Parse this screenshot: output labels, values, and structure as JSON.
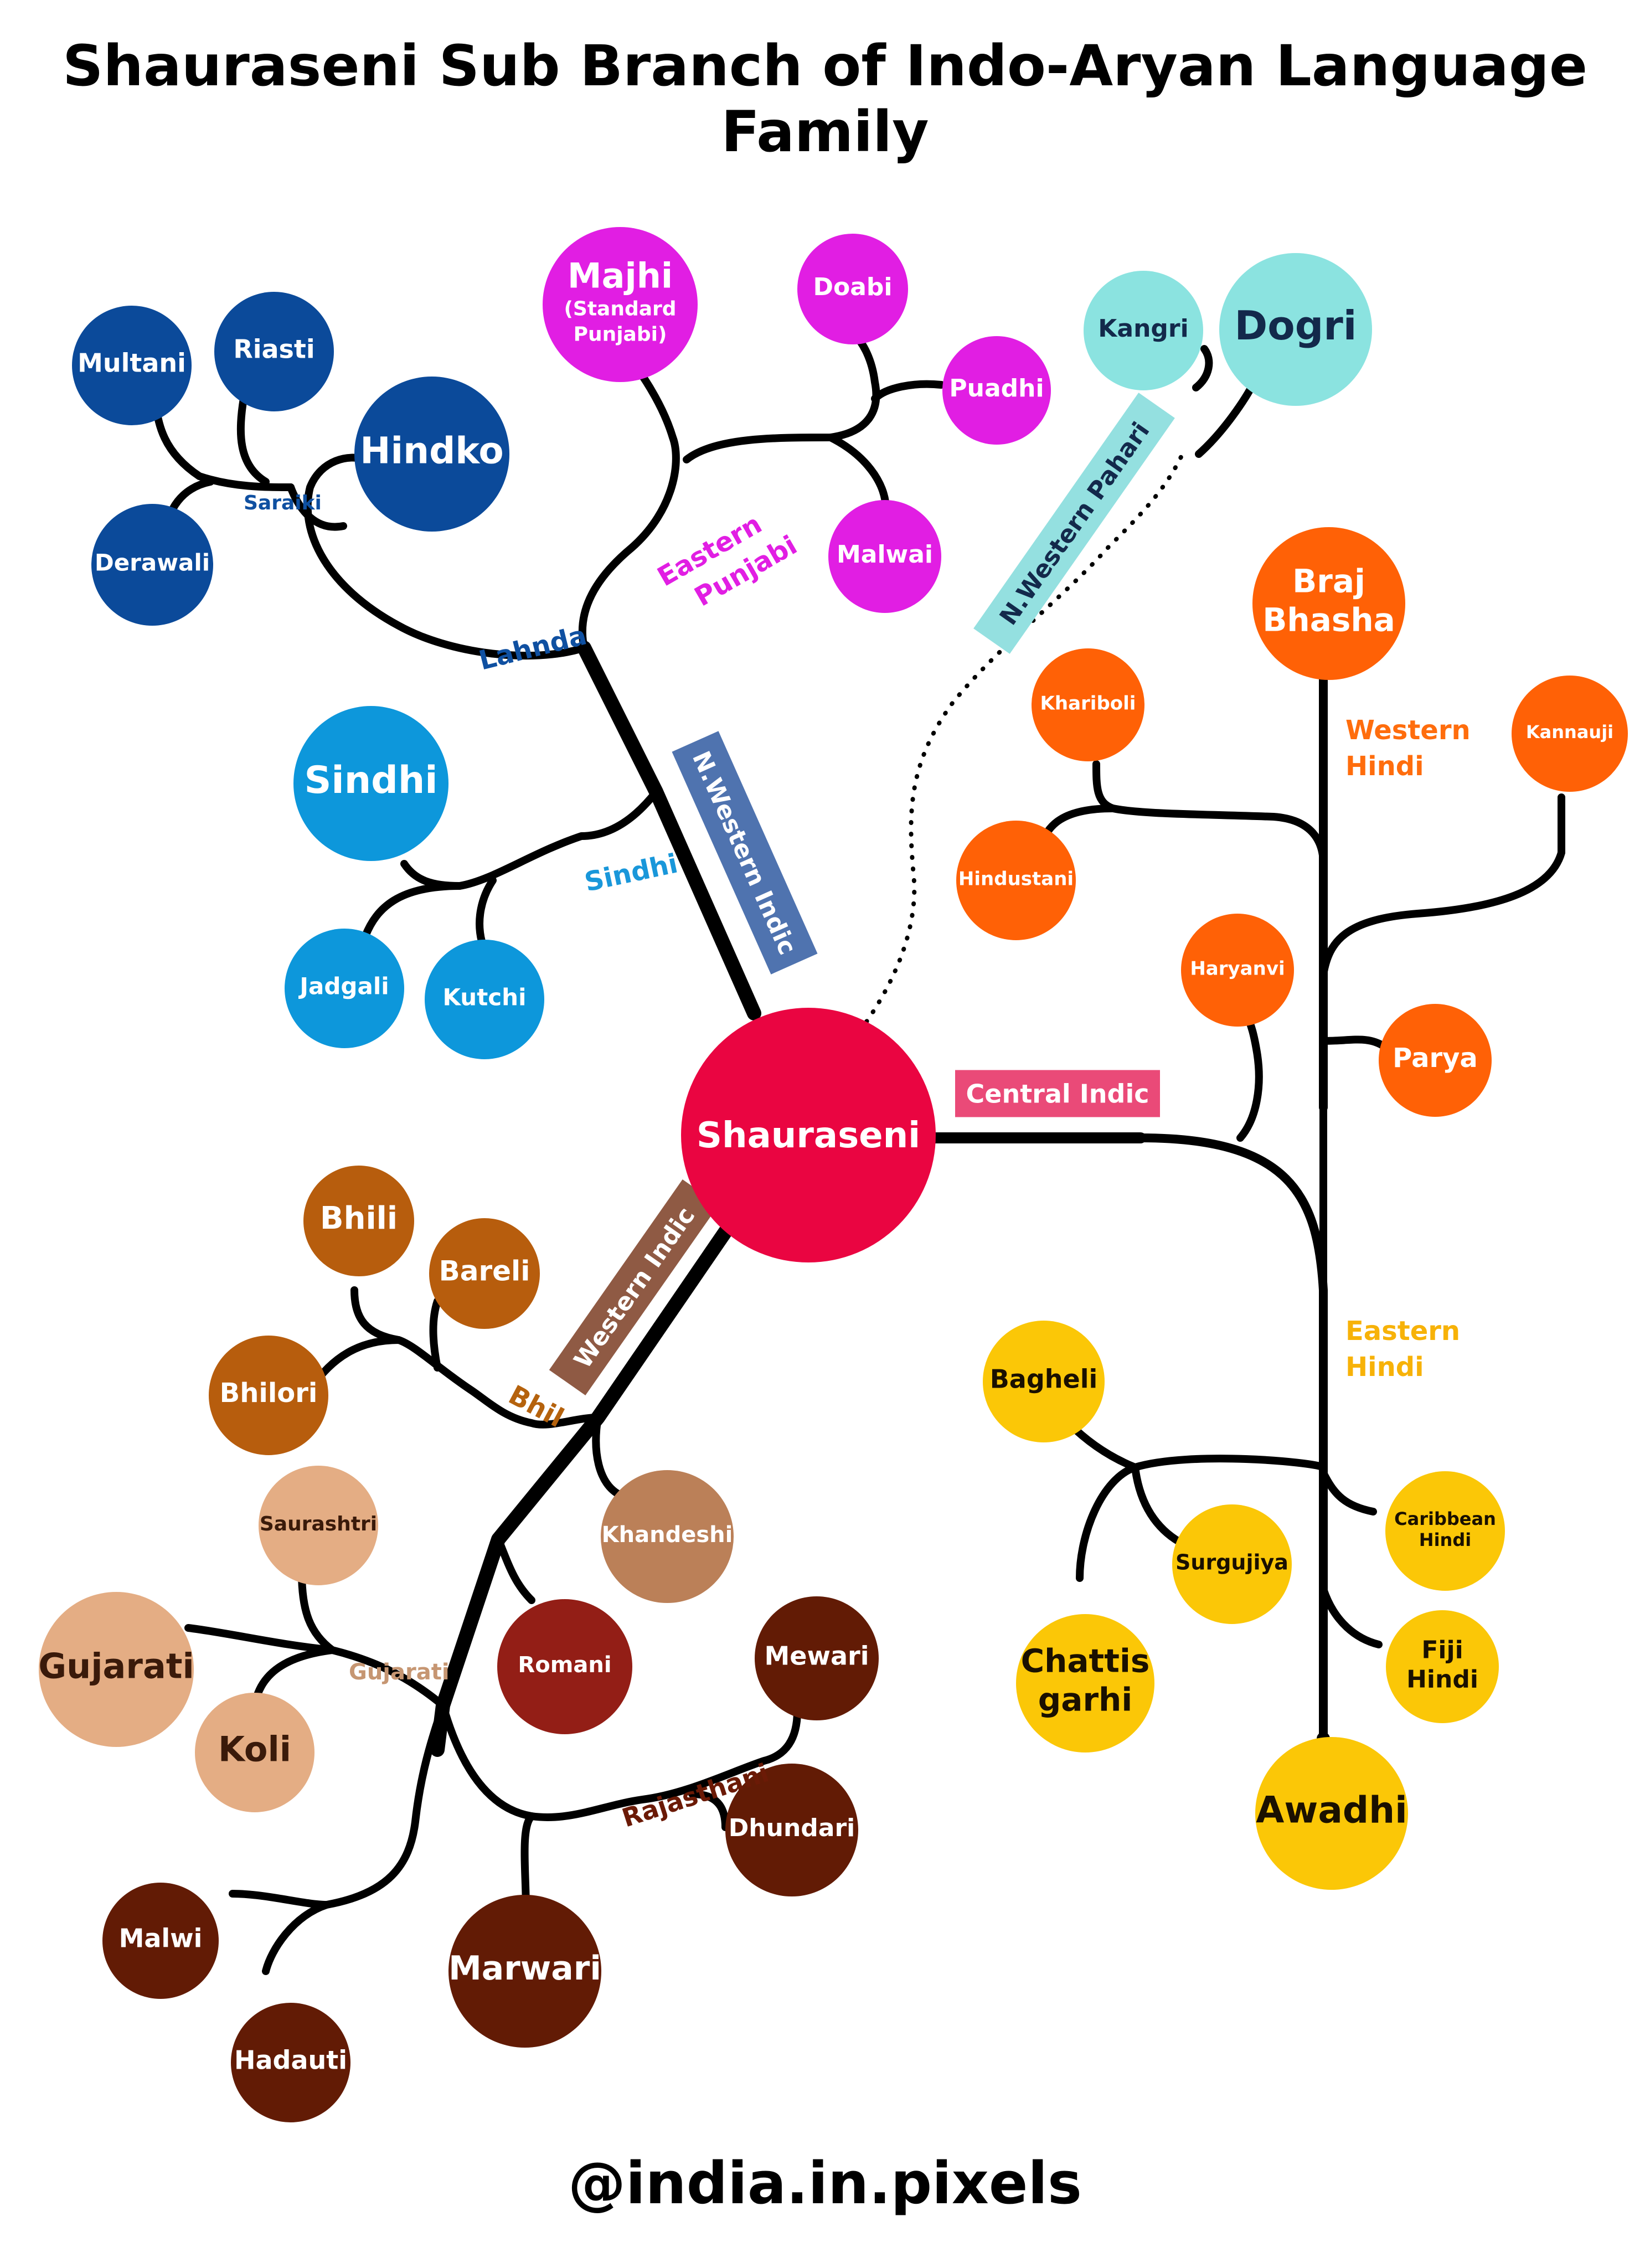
{
  "title": "Shauraseni Sub Branch of Indo-Aryan Language Family",
  "credit": "@india.in.pixels",
  "root": {
    "label": "Shauraseni",
    "color": "#ea0541"
  },
  "line_color": "#000000",
  "branches": [
    {
      "key": "nw_indic",
      "label": "N.Western Indic",
      "color": "#4f73af",
      "kind": "box"
    },
    {
      "key": "nw_pahari",
      "label": "N.Western Pahari",
      "color": "#94e0e0",
      "kind": "box"
    },
    {
      "key": "central",
      "label": "Central Indic",
      "color": "#ea4a78",
      "kind": "box"
    },
    {
      "key": "western",
      "label": "Western Indic",
      "color": "#8f5a44",
      "kind": "box"
    },
    {
      "key": "lahnda",
      "label": "Lahnda",
      "color": "#0f50a1",
      "kind": "text"
    },
    {
      "key": "saraiki",
      "label": "Saraiki",
      "color": "#0f50a1",
      "kind": "text"
    },
    {
      "key": "e_punjabi",
      "label": "Eastern Punjabi",
      "color": "#e11ee3",
      "kind": "text"
    },
    {
      "key": "sindhi_group",
      "label": "Sindhi",
      "color": "#1997da",
      "kind": "text"
    },
    {
      "key": "w_hindi",
      "label": "Western Hindi",
      "color": "#ff6d0d",
      "kind": "text"
    },
    {
      "key": "e_hindi",
      "label": "Eastern Hindi",
      "color": "#f7b208",
      "kind": "text"
    },
    {
      "key": "bhil",
      "label": "Bhil",
      "color": "#b5620d",
      "kind": "text"
    },
    {
      "key": "gujarati_group",
      "label": "Gujarati",
      "color": "#c69672",
      "kind": "text"
    },
    {
      "key": "rajasthani",
      "label": "Rajasthani",
      "color": "#6b1a06",
      "kind": "text"
    }
  ],
  "languages": [
    {
      "key": "multani",
      "label": "Multani",
      "color": "#0b4a9a",
      "text": "#ffffff"
    },
    {
      "key": "riasti",
      "label": "Riasti",
      "color": "#0b4a9a",
      "text": "#ffffff"
    },
    {
      "key": "hindko",
      "label": "Hindko",
      "color": "#0b4a9a",
      "text": "#ffffff"
    },
    {
      "key": "derawali",
      "label": "Derawali",
      "color": "#0b4a9a",
      "text": "#ffffff"
    },
    {
      "key": "majhi",
      "label": "Majhi",
      "sub": "(Standard Punjabi)",
      "color": "#e11ee3",
      "text": "#ffffff"
    },
    {
      "key": "doabi",
      "label": "Doabi",
      "color": "#e11ee3",
      "text": "#ffffff"
    },
    {
      "key": "puadhi",
      "label": "Puadhi",
      "color": "#e11ee3",
      "text": "#ffffff"
    },
    {
      "key": "malwai",
      "label": "Malwai",
      "color": "#e11ee3",
      "text": "#ffffff"
    },
    {
      "key": "kangri",
      "label": "Kangri",
      "color": "#8be3e0",
      "text": "#13294b"
    },
    {
      "key": "dogri",
      "label": "Dogri",
      "color": "#8be3e0",
      "text": "#13294b"
    },
    {
      "key": "sindhi",
      "label": "Sindhi",
      "color": "#0d97db",
      "text": "#ffffff"
    },
    {
      "key": "jadgali",
      "label": "Jadgali",
      "color": "#0d97db",
      "text": "#ffffff"
    },
    {
      "key": "kutchi",
      "label": "Kutchi",
      "color": "#0d97db",
      "text": "#ffffff"
    },
    {
      "key": "braj",
      "label": "Braj Bhasha",
      "color": "#ff6106",
      "text": "#ffffff"
    },
    {
      "key": "khariboli",
      "label": "Khariboli",
      "color": "#ff6106",
      "text": "#ffffff"
    },
    {
      "key": "kannauji",
      "label": "Kannauji",
      "color": "#ff6106",
      "text": "#ffffff"
    },
    {
      "key": "hindustani",
      "label": "Hindustani",
      "color": "#ff6106",
      "text": "#ffffff"
    },
    {
      "key": "haryanvi",
      "label": "Haryanvi",
      "color": "#ff6106",
      "text": "#ffffff"
    },
    {
      "key": "parya",
      "label": "Parya",
      "color": "#ff6106",
      "text": "#ffffff"
    },
    {
      "key": "bagheli",
      "label": "Bagheli",
      "color": "#fbc707",
      "text": "#1a1000"
    },
    {
      "key": "surgujiya",
      "label": "Surgujiya",
      "color": "#fbc707",
      "text": "#1a1000"
    },
    {
      "key": "caribbean",
      "label": "Caribbean Hindi",
      "color": "#fbc707",
      "text": "#1a1000"
    },
    {
      "key": "fiji",
      "label": "Fiji Hindi",
      "color": "#fbc707",
      "text": "#1a1000"
    },
    {
      "key": "chattis",
      "label": "Chattis garhi",
      "color": "#fbc707",
      "text": "#1a1000"
    },
    {
      "key": "awadhi",
      "label": "Awadhi",
      "color": "#fbc707",
      "text": "#1a1000"
    },
    {
      "key": "bhili",
      "label": "Bhili",
      "color": "#b75d0d",
      "text": "#ffffff"
    },
    {
      "key": "bareli",
      "label": "Bareli",
      "color": "#b75d0d",
      "text": "#ffffff"
    },
    {
      "key": "bhilori",
      "label": "Bhilori",
      "color": "#b75d0d",
      "text": "#ffffff"
    },
    {
      "key": "saurashtri",
      "label": "Saurashtri",
      "color": "#e4ad84",
      "text": "#3a1a0a"
    },
    {
      "key": "khandeshi",
      "label": "Khandeshi",
      "color": "#bb8058",
      "text": "#ffffff"
    },
    {
      "key": "gujarati",
      "label": "Gujarati",
      "color": "#e4ad84",
      "text": "#3a1a0a"
    },
    {
      "key": "koli",
      "label": "Koli",
      "color": "#e4ad84",
      "text": "#3a1a0a"
    },
    {
      "key": "romani",
      "label": "Romani",
      "color": "#931e16",
      "text": "#ffffff"
    },
    {
      "key": "mewari",
      "label": "Mewari",
      "color": "#621b05",
      "text": "#ffffff"
    },
    {
      "key": "dhundari",
      "label": "Dhundari",
      "color": "#621b05",
      "text": "#ffffff"
    },
    {
      "key": "malwi",
      "label": "Malwi",
      "color": "#621b05",
      "text": "#ffffff"
    },
    {
      "key": "marwari",
      "label": "Marwari",
      "color": "#621b05",
      "text": "#ffffff"
    },
    {
      "key": "hadauti",
      "label": "Hadauti",
      "color": "#621b05",
      "text": "#ffffff"
    }
  ]
}
